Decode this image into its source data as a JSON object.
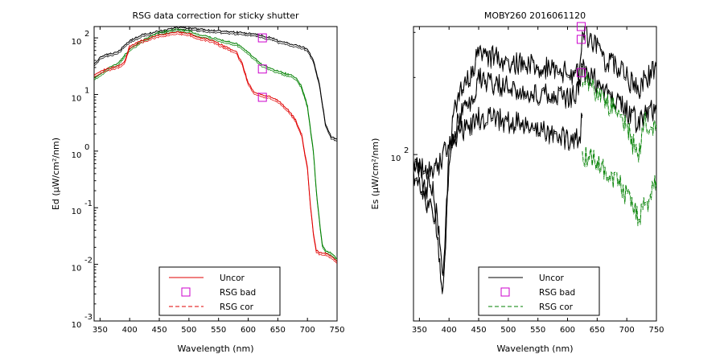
{
  "chart_data": [
    {
      "type": "line",
      "title": "RSG data correction for sticky shutter",
      "xlabel": "Wavelength (nm)",
      "ylabel": "Ed (µW/cm²/nm)",
      "xlim": [
        340,
        750
      ],
      "ylim_log10": [
        -3,
        2.2
      ],
      "yscale": "log",
      "x_ticks": [
        "350",
        "400",
        "450",
        "500",
        "550",
        "600",
        "650",
        "700",
        "750"
      ],
      "y_ticks": [
        {
          "base": "10",
          "exp": "2"
        },
        {
          "base": "10",
          "exp": "1"
        },
        {
          "base": "10",
          "exp": "0"
        },
        {
          "base": "10",
          "exp": "-1"
        },
        {
          "base": "10",
          "exp": "-2"
        },
        {
          "base": "10",
          "exp": "-3"
        }
      ],
      "legend": {
        "position": "bottom-center",
        "entries": [
          {
            "label": "Uncor",
            "style": "solid",
            "color": "#e00000"
          },
          {
            "label": "RSG bad",
            "style": "marker-square",
            "color": "#cc00cc"
          },
          {
            "label": "RSG cor",
            "style": "dashed",
            "color": "#e00000"
          }
        ]
      },
      "series": [
        {
          "color": "#000000",
          "x": [
            340,
            350,
            360,
            380,
            400,
            420,
            450,
            480,
            500,
            520,
            550,
            580,
            600,
            620,
            640,
            650,
            670,
            690,
            700,
            710,
            715,
            720,
            730,
            740,
            750
          ],
          "y": [
            1.55,
            1.65,
            1.7,
            1.75,
            1.95,
            2.05,
            2.12,
            2.18,
            2.17,
            2.15,
            2.12,
            2.1,
            2.08,
            2.05,
            2.0,
            1.95,
            1.9,
            1.85,
            1.8,
            1.6,
            1.4,
            1.2,
            0.5,
            0.25,
            0.22
          ]
        },
        {
          "color": "#008000",
          "x": [
            340,
            350,
            360,
            380,
            400,
            420,
            450,
            480,
            500,
            520,
            540,
            560,
            580,
            600,
            620,
            640,
            650,
            660,
            670,
            680,
            690,
            700,
            710,
            715,
            720,
            725,
            730,
            740,
            750
          ],
          "y": [
            1.3,
            1.35,
            1.45,
            1.55,
            1.8,
            1.95,
            2.1,
            2.15,
            2.12,
            2.05,
            2.0,
            1.95,
            1.9,
            1.75,
            1.55,
            1.45,
            1.42,
            1.38,
            1.35,
            1.3,
            1.15,
            0.8,
            0.0,
            -0.7,
            -1.2,
            -1.65,
            -1.75,
            -1.8,
            -1.9
          ]
        },
        {
          "color": "#e00000",
          "x": [
            340,
            350,
            360,
            380,
            390,
            400,
            420,
            450,
            480,
            500,
            520,
            540,
            560,
            580,
            590,
            600,
            610,
            620,
            640,
            650,
            660,
            670,
            680,
            690,
            700,
            705,
            710,
            715,
            720,
            730,
            740,
            750
          ],
          "y": [
            1.35,
            1.4,
            1.45,
            1.5,
            1.55,
            1.85,
            1.95,
            2.05,
            2.1,
            2.08,
            2.0,
            1.95,
            1.85,
            1.75,
            1.55,
            1.2,
            1.05,
            1.0,
            0.95,
            0.9,
            0.8,
            0.7,
            0.55,
            0.3,
            -0.3,
            -0.95,
            -1.45,
            -1.75,
            -1.8,
            -1.8,
            -1.85,
            -1.95
          ]
        }
      ],
      "markers": [
        {
          "x": 624,
          "y": 2.0
        },
        {
          "x": 624,
          "y": 1.45
        },
        {
          "x": 624,
          "y": 0.95
        }
      ]
    },
    {
      "type": "line",
      "title": "MOBY260  2016061120",
      "xlabel": "Wavelength (nm)",
      "ylabel": "Es (µW/cm²/nm)",
      "xlim": [
        340,
        750
      ],
      "ylim_log10": [
        1.35,
        2.5
      ],
      "yscale": "log",
      "x_ticks": [
        "350",
        "400",
        "450",
        "500",
        "550",
        "600",
        "650",
        "700",
        "750"
      ],
      "y_ticks": [
        {
          "base": "10",
          "exp": "2"
        }
      ],
      "legend": {
        "position": "bottom-center",
        "entries": [
          {
            "label": "Uncor",
            "style": "solid",
            "color": "#000000"
          },
          {
            "label": "RSG bad",
            "style": "marker-square",
            "color": "#cc00cc"
          },
          {
            "label": "RSG cor",
            "style": "dashed",
            "color": "#008000"
          }
        ]
      },
      "series": [
        {
          "color": "#000000",
          "x": [
            340,
            350,
            360,
            370,
            380,
            390,
            400,
            410,
            420,
            430,
            440,
            450,
            460,
            480,
            500,
            520,
            540,
            560,
            580,
            600,
            620,
            625,
            640,
            650,
            660,
            680,
            700,
            720,
            730,
            740,
            750
          ],
          "y": [
            1.98,
            1.95,
            1.85,
            1.9,
            1.75,
            1.55,
            2.0,
            2.2,
            2.25,
            2.3,
            2.33,
            2.4,
            2.39,
            2.38,
            2.37,
            2.36,
            2.35,
            2.34,
            2.33,
            2.32,
            2.31,
            2.5,
            2.45,
            2.42,
            2.38,
            2.35,
            2.3,
            2.25,
            2.3,
            2.32,
            2.35
          ]
        },
        {
          "color": "#000000",
          "x": [
            340,
            350,
            360,
            370,
            380,
            390,
            400,
            410,
            420,
            430,
            440,
            450,
            460,
            480,
            500,
            520,
            540,
            560,
            580,
            600,
            620,
            625
          ],
          "y": [
            1.9,
            1.88,
            1.8,
            1.82,
            1.7,
            1.45,
            1.95,
            2.1,
            2.15,
            2.2,
            2.22,
            2.3,
            2.29,
            2.28,
            2.27,
            2.26,
            2.25,
            2.24,
            2.23,
            2.22,
            2.25,
            2.35
          ]
        },
        {
          "color": "#000000",
          "x": [
            625,
            640,
            650,
            660,
            680,
            700,
            720,
            730,
            740,
            750
          ],
          "y": [
            2.34,
            2.31,
            2.28,
            2.26,
            2.22,
            2.18,
            2.12,
            2.15,
            2.17,
            2.18
          ]
        },
        {
          "color": "#000000",
          "x": [
            340,
            380,
            400,
            420,
            440,
            450,
            480,
            500,
            520,
            540,
            560,
            580,
            600,
            620,
            625
          ],
          "y": [
            1.95,
            1.95,
            2.05,
            2.1,
            2.12,
            2.15,
            2.14,
            2.13,
            2.12,
            2.12,
            2.1,
            2.08,
            2.06,
            2.06,
            2.15
          ]
        },
        {
          "color": "#008000",
          "dashed": true,
          "x": [
            625,
            640,
            650,
            660,
            680,
            700,
            710,
            720,
            730,
            740,
            750
          ],
          "y": [
            2.3,
            2.28,
            2.25,
            2.22,
            2.18,
            2.12,
            2.05,
            2.0,
            2.15,
            2.1,
            2.12
          ]
        },
        {
          "color": "#008000",
          "dashed": true,
          "x": [
            625,
            640,
            650,
            660,
            680,
            700,
            710,
            720,
            730,
            740,
            750
          ],
          "y": [
            2.0,
            2.0,
            1.98,
            1.95,
            1.9,
            1.85,
            1.8,
            1.75,
            1.8,
            1.85,
            1.9
          ]
        }
      ],
      "markers": [
        {
          "x": 623,
          "y": 2.5
        },
        {
          "x": 623,
          "y": 2.45
        },
        {
          "x": 623,
          "y": 2.32
        }
      ]
    }
  ]
}
